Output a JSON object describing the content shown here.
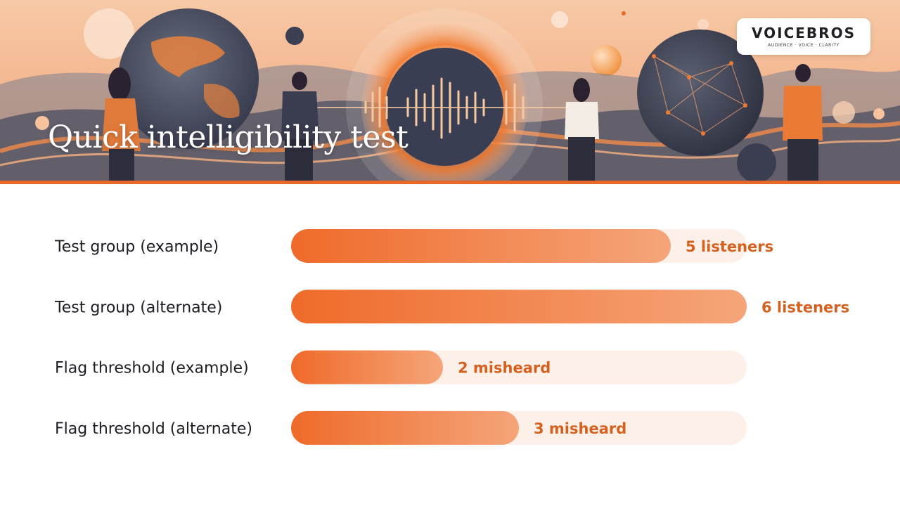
{
  "header": {
    "title": "Quick intelligibility test",
    "logo_text": "VOICEBROS",
    "logo_tagline": "AUDIENCE · VOICE · CLARITY"
  },
  "colors": {
    "accent": "#e8682a",
    "bar_start": "#ef6a2a",
    "bar_end": "#f5a57a",
    "track": "#fdf0e8",
    "value_text": "#d4611f",
    "label_text": "#1c1c22"
  },
  "chart_data": {
    "type": "bar",
    "orientation": "horizontal",
    "title": "",
    "xlabel": "",
    "ylabel": "",
    "xlim": [
      0,
      6
    ],
    "grid": false,
    "categories": [
      "Test group (example)",
      "Test group (alternate)",
      "Flag threshold (example)",
      "Flag threshold (alternate)"
    ],
    "values": [
      5,
      6,
      2,
      3
    ],
    "value_labels": [
      "5 listeners",
      "6 listeners",
      "2 misheard",
      "3 misheard"
    ]
  }
}
